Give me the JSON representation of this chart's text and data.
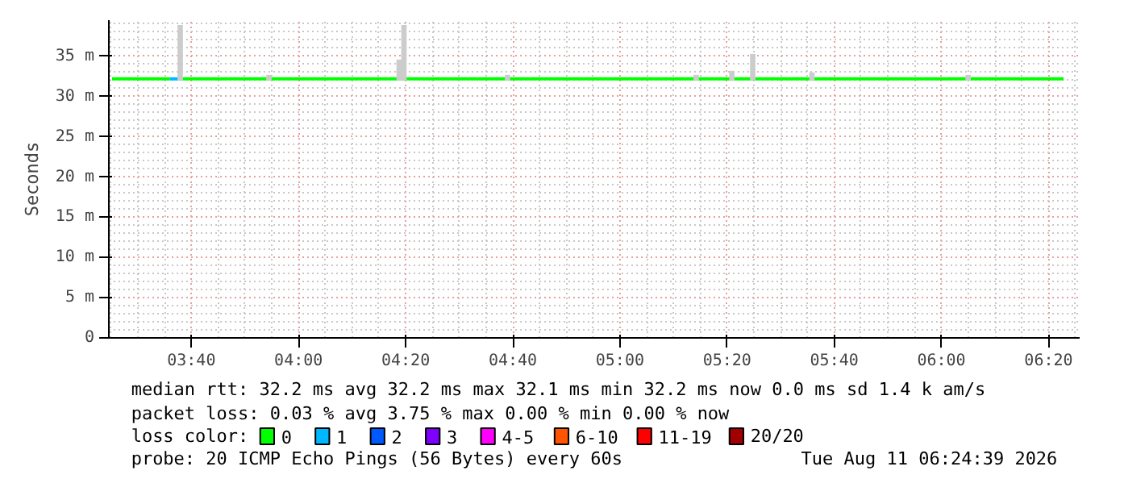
{
  "chart_data": {
    "type": "line",
    "ylabel": "Seconds",
    "xlim": [
      3.41,
      6.43
    ],
    "ylim": [
      0,
      39.5
    ],
    "xticks": [
      {
        "value": 3.6667,
        "label": "03:40"
      },
      {
        "value": 4.0,
        "label": "04:00"
      },
      {
        "value": 4.3333,
        "label": "04:20"
      },
      {
        "value": 4.6667,
        "label": "04:40"
      },
      {
        "value": 5.0,
        "label": "05:00"
      },
      {
        "value": 5.3333,
        "label": "05:20"
      },
      {
        "value": 5.6667,
        "label": "05:40"
      },
      {
        "value": 6.0,
        "label": "06:00"
      },
      {
        "value": 6.3333,
        "label": "06:20"
      }
    ],
    "yticks": [
      {
        "value": 0,
        "label": "0"
      },
      {
        "value": 5,
        "label": "5 m"
      },
      {
        "value": 10,
        "label": "10 m"
      },
      {
        "value": 15,
        "label": "15 m"
      },
      {
        "value": 20,
        "label": "20 m"
      },
      {
        "value": 25,
        "label": "25 m"
      },
      {
        "value": 30,
        "label": "30 m"
      },
      {
        "value": 35,
        "label": "35 m"
      }
    ],
    "grid": true,
    "legend": "bottom",
    "legend_title": "loss color:",
    "series": [
      {
        "type": "bar",
        "color": "#cccccc",
        "x": [
          3.632,
          3.908,
          4.313,
          4.328,
          4.65,
          5.237,
          5.348,
          5.413,
          5.597,
          6.083
        ],
        "base": [
          32.0,
          32.0,
          32.0,
          32.0,
          32.0,
          32.0,
          32.0,
          32.0,
          32.0,
          32.0
        ],
        "values": [
          6.9,
          0.7,
          2.6,
          6.9,
          0.7,
          0.7,
          1.2,
          3.3,
          1.0,
          0.7
        ]
      },
      {
        "name": "0",
        "color": "#00ff00",
        "x": [
          3.42,
          3.6,
          3.62,
          3.64,
          6.38
        ],
        "values": [
          32.2,
          32.2,
          null,
          32.2,
          32.2
        ]
      },
      {
        "name": "1",
        "color": "#00b8ff",
        "x": [
          3.6,
          3.64
        ],
        "values": [
          32.2,
          32.2
        ]
      },
      {
        "name": "2",
        "color": "#0059ff"
      },
      {
        "name": "3",
        "color": "#7e00ff"
      },
      {
        "name": "4-5",
        "color": "#ff00ff"
      },
      {
        "name": "6-10",
        "color": "#ff5500"
      },
      {
        "name": "11-19",
        "color": "#ff0000"
      },
      {
        "name": "20/20",
        "color": "#a10000"
      }
    ],
    "annotations": [
      "median rtt:  32.2 ms avg  32.2 ms max  32.1 ms min  32.2 ms now  0.0 ms sd  1.4 k am/s",
      "packet loss: 0.03 % avg  3.75 % max  0.00 % min  0.00 % now",
      "probe:       20 ICMP Echo Pings (56 Bytes) every 60s",
      "Tue Aug 11 06:24:39 2026"
    ]
  }
}
